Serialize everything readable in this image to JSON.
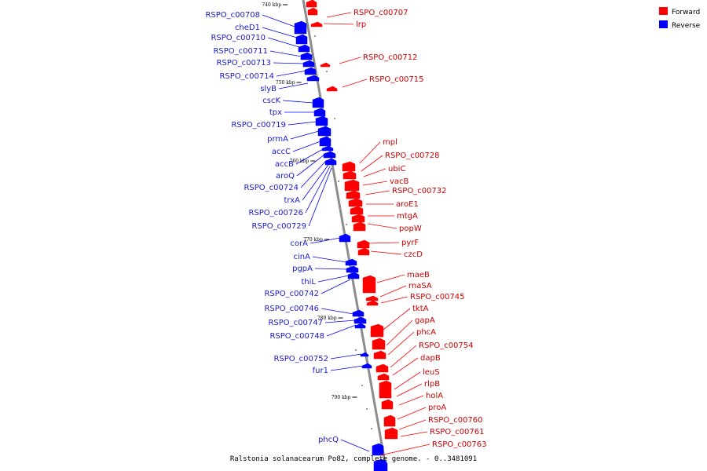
{
  "colors": {
    "forward": "#ff0000",
    "reverse": "#0000ff",
    "forward_label": "#cc0000",
    "reverse_label": "#1a1acc",
    "backbone": "#8c8c8c"
  },
  "legend": {
    "forward": "Forward",
    "reverse": "Reverse"
  },
  "caption": "Ralstonia solanacearum Po82, complete genome. - 0..3481091",
  "ticks": [
    "740 kbp",
    "750 kbp",
    "760 kbp",
    "770 kbp",
    "780 kbp",
    "790 kbp"
  ],
  "forward_genes": [
    "RSPO_c00707",
    "lrp",
    "RSPO_c00712",
    "RSPO_c00715",
    "mpl",
    "RSPO_c00728",
    "ubiC",
    "vacB",
    "RSPO_c00732",
    "aroE1",
    "mtgA",
    "popW",
    "pyrF",
    "czcD",
    "maeB",
    "rnaSA",
    "RSPO_c00745",
    "tktA",
    "gapA",
    "phcA",
    "RSPO_c00754",
    "dapB",
    "leuS",
    "rlpB",
    "holA",
    "proA",
    "RSPO_c00760",
    "RSPO_c00761",
    "RSPO_c00763"
  ],
  "reverse_genes": [
    "RSPO_c00708",
    "cheD1",
    "RSPO_c00710",
    "RSPO_c00711",
    "RSPO_c00713",
    "RSPO_c00714",
    "slyB",
    "cscK",
    "tpx",
    "RSPO_c00719",
    "prmA",
    "accC",
    "accB",
    "aroQ",
    "RSPO_c00724",
    "trxA",
    "RSPO_c00726",
    "RSPO_c00729",
    "corA",
    "cinA",
    "pgpA",
    "thiL",
    "RSPO_c00742",
    "RSPO_c00746",
    "RSPO_c00747",
    "RSPO_c00748",
    "RSPO_c00752",
    "fur1",
    "phcQ"
  ]
}
